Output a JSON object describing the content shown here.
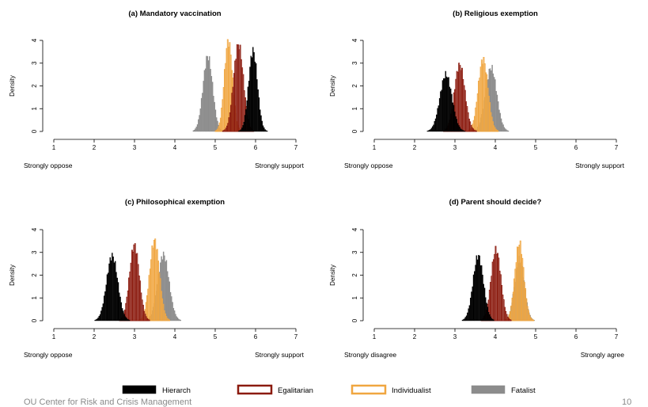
{
  "footer": {
    "org": "OU Center for Risk and Crisis Management",
    "page_number": "10"
  },
  "legend": [
    {
      "name": "Hierarch",
      "fill": "#000000",
      "stroke": "#000000"
    },
    {
      "name": "Egalitarian",
      "fill": "#ffffff",
      "stroke": "#8b1a0e"
    },
    {
      "name": "Individualist",
      "fill": "#ffffff",
      "stroke": "#f0a640"
    },
    {
      "name": "Fatalist",
      "fill": "#8c8c8c",
      "stroke": "#8c8c8c"
    }
  ],
  "chart_data": [
    {
      "type": "histogram",
      "title": "(a) Mandatory vaccination",
      "ylabel": "Density",
      "xlim": [
        1,
        7
      ],
      "ylim": [
        0,
        4
      ],
      "xticks": [
        1,
        2,
        3,
        4,
        5,
        6,
        7
      ],
      "yticks": [
        0,
        1,
        2,
        3,
        4
      ],
      "x_left_label": "Strongly oppose",
      "x_right_label": "Strongly support",
      "series": [
        {
          "name": "Fatalist",
          "mean": 4.82,
          "sd": 0.12,
          "peak": 3.3
        },
        {
          "name": "Individualist",
          "mean": 5.33,
          "sd": 0.1,
          "peak": 3.95
        },
        {
          "name": "Egalitarian",
          "mean": 5.58,
          "sd": 0.12,
          "peak": 3.8
        },
        {
          "name": "Hierarch",
          "mean": 5.94,
          "sd": 0.11,
          "peak": 3.55
        }
      ]
    },
    {
      "type": "histogram",
      "title": "(b) Religious exemption",
      "ylabel": "Density",
      "xlim": [
        1,
        7
      ],
      "ylim": [
        0,
        4
      ],
      "xticks": [
        1,
        2,
        3,
        4,
        5,
        6,
        7
      ],
      "yticks": [
        0,
        1,
        2,
        3,
        4
      ],
      "x_left_label": "Strongly oppose",
      "x_right_label": "Strongly support",
      "series": [
        {
          "name": "Hierarch",
          "mean": 2.78,
          "sd": 0.15,
          "peak": 2.5
        },
        {
          "name": "Egalitarian",
          "mean": 3.12,
          "sd": 0.13,
          "peak": 2.9
        },
        {
          "name": "Individualist",
          "mean": 3.7,
          "sd": 0.12,
          "peak": 3.15
        },
        {
          "name": "Fatalist",
          "mean": 3.9,
          "sd": 0.14,
          "peak": 2.8
        }
      ]
    },
    {
      "type": "histogram",
      "title": "(c) Philosophical exemption",
      "ylabel": "Density",
      "xlim": [
        1,
        7
      ],
      "ylim": [
        0,
        4
      ],
      "xticks": [
        1,
        2,
        3,
        4,
        5,
        6,
        7
      ],
      "yticks": [
        0,
        1,
        2,
        3,
        4
      ],
      "x_left_label": "Strongly oppose",
      "x_right_label": "Strongly support",
      "series": [
        {
          "name": "Hierarch",
          "mean": 2.45,
          "sd": 0.14,
          "peak": 2.85
        },
        {
          "name": "Egalitarian",
          "mean": 3.0,
          "sd": 0.12,
          "peak": 3.3
        },
        {
          "name": "Individualist",
          "mean": 3.5,
          "sd": 0.12,
          "peak": 3.5
        },
        {
          "name": "Fatalist",
          "mean": 3.72,
          "sd": 0.14,
          "peak": 2.9
        }
      ]
    },
    {
      "type": "histogram",
      "title": "(d) Parent should decide?",
      "ylabel": "Density",
      "xlim": [
        1,
        7
      ],
      "ylim": [
        0,
        4
      ],
      "xticks": [
        1,
        2,
        3,
        4,
        5,
        6,
        7
      ],
      "yticks": [
        0,
        1,
        2,
        3,
        4
      ],
      "x_left_label": "Strongly disagree",
      "x_right_label": "Strongly agree",
      "series": [
        {
          "name": "Hierarch",
          "mean": 3.58,
          "sd": 0.13,
          "peak": 2.85
        },
        {
          "name": "Egalitarian",
          "mean": 4.02,
          "sd": 0.12,
          "peak": 3.1
        },
        {
          "name": "Fatalist",
          "mean": 4.6,
          "sd": 0.12,
          "peak": 2.7
        },
        {
          "name": "Individualist",
          "mean": 4.6,
          "sd": 0.11,
          "peak": 3.4
        }
      ]
    }
  ]
}
